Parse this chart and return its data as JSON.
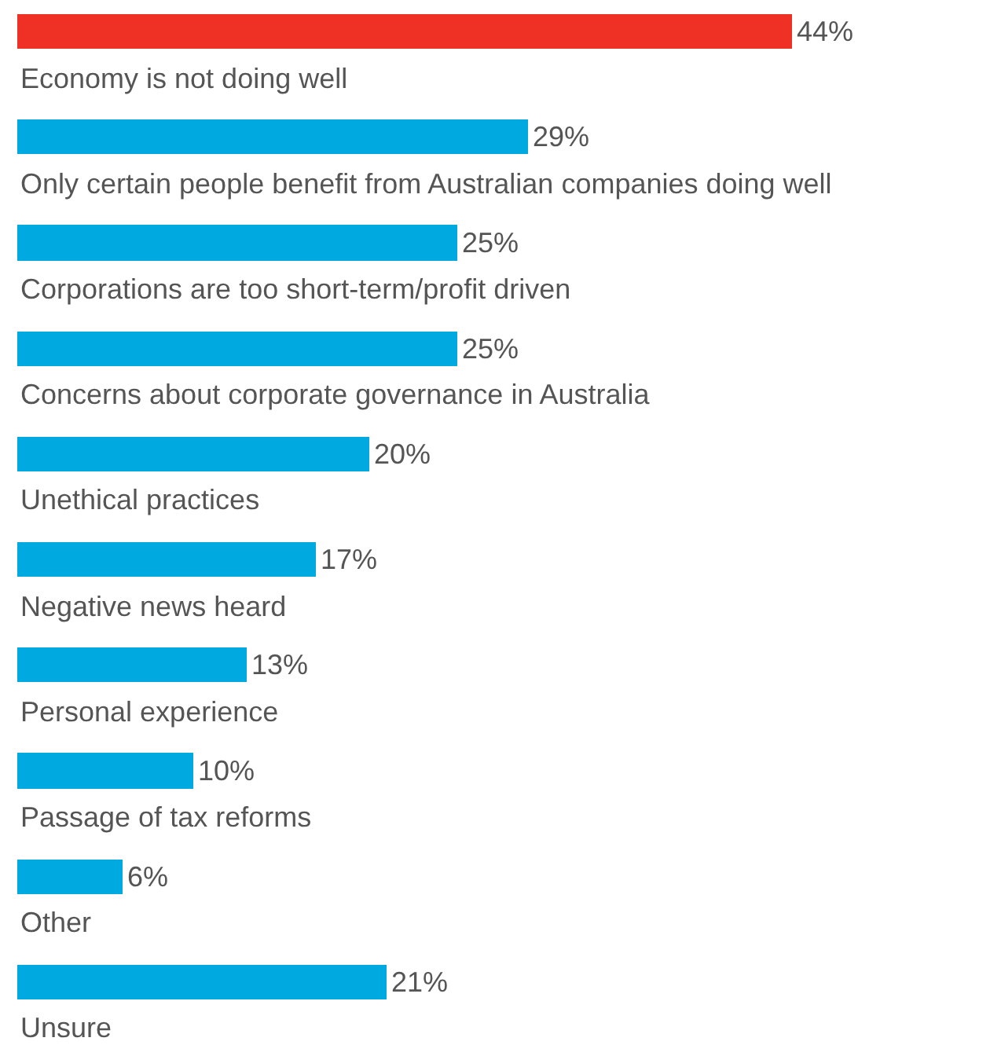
{
  "chart_data": {
    "type": "bar",
    "orientation": "horizontal",
    "categories": [
      "Economy is not doing well",
      "Only certain people benefit from Australian companies doing well",
      "Corporations are too short-term/profit driven",
      "Concerns about corporate governance in Australia",
      "Unethical practices",
      "Negative news heard",
      "Personal experience",
      "Passage of tax reforms",
      "Other",
      "Unsure"
    ],
    "values": [
      44,
      29,
      25,
      25,
      20,
      17,
      13,
      10,
      6,
      21
    ],
    "value_labels": [
      "44%",
      "29%",
      "25%",
      "25%",
      "20%",
      "17%",
      "13%",
      "10%",
      "6%",
      "21%"
    ],
    "colors": [
      "#ee3124",
      "#00a9e0",
      "#00a9e0",
      "#00a9e0",
      "#00a9e0",
      "#00a9e0",
      "#00a9e0",
      "#00a9e0",
      "#00a9e0",
      "#00a9e0"
    ]
  }
}
